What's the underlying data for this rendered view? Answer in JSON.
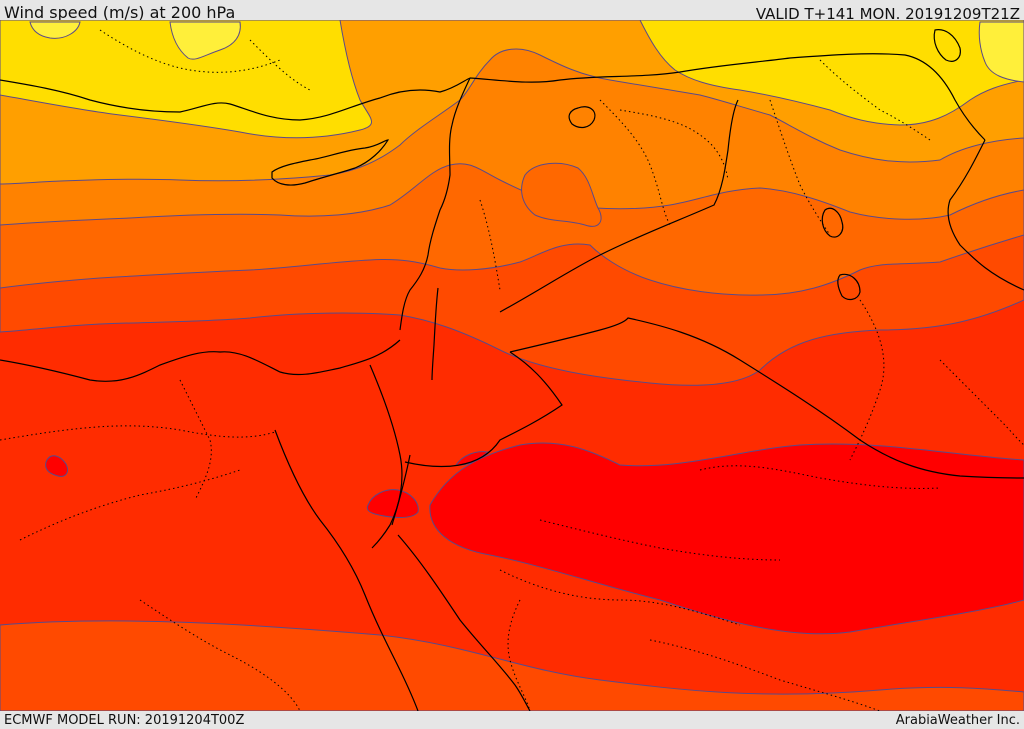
{
  "header": {
    "title": "Wind speed (m/s) at 200 hPa",
    "valid_time": "VALID T+141 MON. 20191209T21Z"
  },
  "footer": {
    "model_run": "ECMWF MODEL RUN: 20191204T00Z",
    "credit": "ArabiaWeather Inc."
  },
  "map": {
    "colors": {
      "band_1": "#ffde00",
      "band_2": "#ff9f00",
      "band_3": "#ff8200",
      "band_4": "#ff6800",
      "band_5": "#ff4a00",
      "band_6": "#ff2c00",
      "band_7": "#ff1800",
      "band_8": "#ff0000",
      "contour": "#5a4a8a",
      "coast": "#000000"
    }
  }
}
